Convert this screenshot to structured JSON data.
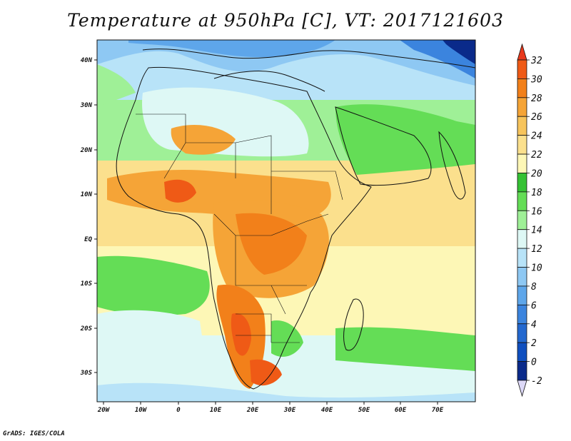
{
  "title": "Temperature at 950hPa [C], VT: 2017121603",
  "credit": "GrADS: IGES/COLA",
  "map": {
    "lat_ticks": [
      "40N",
      "30N",
      "20N",
      "10N",
      "EQ",
      "10S",
      "20S",
      "30S"
    ],
    "lon_ticks": [
      "20W",
      "10W",
      "0",
      "10E",
      "20E",
      "30E",
      "40E",
      "50E",
      "60E",
      "70E"
    ]
  },
  "colorbar": {
    "labels": [
      "32",
      "30",
      "28",
      "26",
      "24",
      "22",
      "20",
      "18",
      "16",
      "14",
      "12",
      "10",
      "8",
      "6",
      "4",
      "2",
      "0",
      "-2"
    ],
    "colors": [
      "#e8391c",
      "#ef5a16",
      "#f2801a",
      "#f5a437",
      "#f7c45c",
      "#fbe08d",
      "#fdf7b6",
      "#35c234",
      "#64dd56",
      "#9ff097",
      "#def8f5",
      "#b8e3f8",
      "#8ec8f3",
      "#5ea6ea",
      "#3b84de",
      "#2368cf",
      "#0f4fbf",
      "#0a2a8a",
      "#dcd8f7"
    ]
  }
}
